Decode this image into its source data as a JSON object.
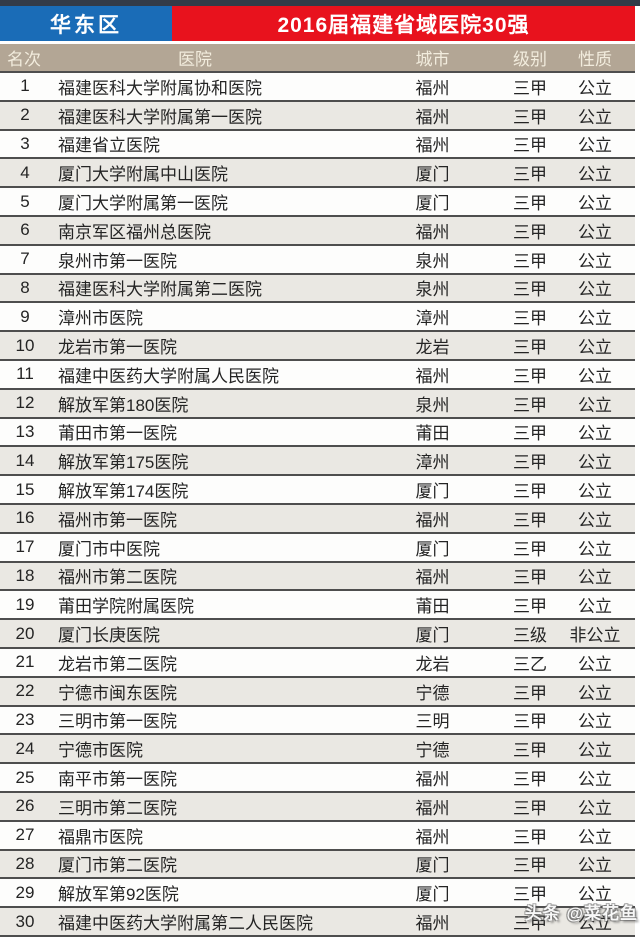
{
  "header": {
    "region": "华东区",
    "title": "2016届福建省域医院30强"
  },
  "chart_data": {
    "type": "table",
    "title": "2016届福建省域医院30强",
    "region_tag": "华东区",
    "columns": [
      "名次",
      "医院",
      "城市",
      "级别",
      "性质"
    ],
    "rows": [
      {
        "rank": "1",
        "hospital": "福建医科大学附属协和医院",
        "city": "福州",
        "level": "三甲",
        "ownership": "公立"
      },
      {
        "rank": "2",
        "hospital": "福建医科大学附属第一医院",
        "city": "福州",
        "level": "三甲",
        "ownership": "公立"
      },
      {
        "rank": "3",
        "hospital": "福建省立医院",
        "city": "福州",
        "level": "三甲",
        "ownership": "公立"
      },
      {
        "rank": "4",
        "hospital": "厦门大学附属中山医院",
        "city": "厦门",
        "level": "三甲",
        "ownership": "公立"
      },
      {
        "rank": "5",
        "hospital": "厦门大学附属第一医院",
        "city": "厦门",
        "level": "三甲",
        "ownership": "公立"
      },
      {
        "rank": "6",
        "hospital": "南京军区福州总医院",
        "city": "福州",
        "level": "三甲",
        "ownership": "公立"
      },
      {
        "rank": "7",
        "hospital": "泉州市第一医院",
        "city": "泉州",
        "level": "三甲",
        "ownership": "公立"
      },
      {
        "rank": "8",
        "hospital": "福建医科大学附属第二医院",
        "city": "泉州",
        "level": "三甲",
        "ownership": "公立"
      },
      {
        "rank": "9",
        "hospital": "漳州市医院",
        "city": "漳州",
        "level": "三甲",
        "ownership": "公立"
      },
      {
        "rank": "10",
        "hospital": "龙岩市第一医院",
        "city": "龙岩",
        "level": "三甲",
        "ownership": "公立"
      },
      {
        "rank": "11",
        "hospital": "福建中医药大学附属人民医院",
        "city": "福州",
        "level": "三甲",
        "ownership": "公立"
      },
      {
        "rank": "12",
        "hospital": "解放军第180医院",
        "city": "泉州",
        "level": "三甲",
        "ownership": "公立"
      },
      {
        "rank": "13",
        "hospital": "莆田市第一医院",
        "city": "莆田",
        "level": "三甲",
        "ownership": "公立"
      },
      {
        "rank": "14",
        "hospital": "解放军第175医院",
        "city": "漳州",
        "level": "三甲",
        "ownership": "公立"
      },
      {
        "rank": "15",
        "hospital": "解放军第174医院",
        "city": "厦门",
        "level": "三甲",
        "ownership": "公立"
      },
      {
        "rank": "16",
        "hospital": "福州市第一医院",
        "city": "福州",
        "level": "三甲",
        "ownership": "公立"
      },
      {
        "rank": "17",
        "hospital": "厦门市中医院",
        "city": "厦门",
        "level": "三甲",
        "ownership": "公立"
      },
      {
        "rank": "18",
        "hospital": "福州市第二医院",
        "city": "福州",
        "level": "三甲",
        "ownership": "公立"
      },
      {
        "rank": "19",
        "hospital": "莆田学院附属医院",
        "city": "莆田",
        "level": "三甲",
        "ownership": "公立"
      },
      {
        "rank": "20",
        "hospital": "厦门长庚医院",
        "city": "厦门",
        "level": "三级",
        "ownership": "非公立"
      },
      {
        "rank": "21",
        "hospital": "龙岩市第二医院",
        "city": "龙岩",
        "level": "三乙",
        "ownership": "公立"
      },
      {
        "rank": "22",
        "hospital": "宁德市闽东医院",
        "city": "宁德",
        "level": "三甲",
        "ownership": "公立"
      },
      {
        "rank": "23",
        "hospital": "三明市第一医院",
        "city": "三明",
        "level": "三甲",
        "ownership": "公立"
      },
      {
        "rank": "24",
        "hospital": "宁德市医院",
        "city": "宁德",
        "level": "三甲",
        "ownership": "公立"
      },
      {
        "rank": "25",
        "hospital": "南平市第一医院",
        "city": "福州",
        "level": "三甲",
        "ownership": "公立"
      },
      {
        "rank": "26",
        "hospital": "三明市第二医院",
        "city": "福州",
        "level": "三甲",
        "ownership": "公立"
      },
      {
        "rank": "27",
        "hospital": "福鼎市医院",
        "city": "福州",
        "level": "三甲",
        "ownership": "公立"
      },
      {
        "rank": "28",
        "hospital": "厦门市第二医院",
        "city": "厦门",
        "level": "三甲",
        "ownership": "公立"
      },
      {
        "rank": "29",
        "hospital": "解放军第92医院",
        "city": "厦门",
        "level": "三甲",
        "ownership": "公立"
      },
      {
        "rank": "30",
        "hospital": "福建中医药大学附属第二人民医院",
        "city": "福州",
        "level": "三甲",
        "ownership": "公立"
      }
    ]
  },
  "watermark": "头条 @菜花鱼",
  "colors": {
    "top_bar": "#333b48",
    "region_bg": "#1a6cb7",
    "title_bg": "#e8121d",
    "column_header_bg": "#b3a695",
    "column_header_text": "#f2ecdd",
    "row_alt_bg": "#eae8e3",
    "row_bg": "#fdfdfc",
    "separator": "#4e4e4e",
    "body_text": "#242424"
  }
}
